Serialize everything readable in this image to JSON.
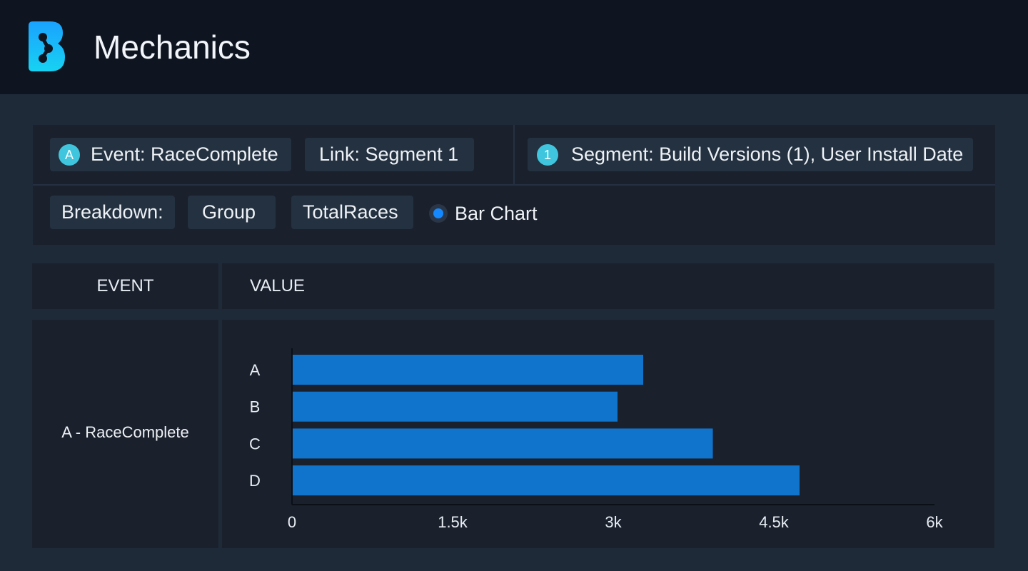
{
  "header": {
    "title": "Mechanics",
    "logo_icon": "brand-logo-icon"
  },
  "query": {
    "event_chip": {
      "badge": "A",
      "label": "Event: RaceComplete"
    },
    "link_chip": {
      "label": "Link: Segment 1"
    },
    "segment_chip": {
      "badge": "1",
      "label": "Segment: Build Versions (1), User Install Date"
    },
    "breakdown_label": "Breakdown:",
    "breakdown_items": [
      "Group",
      "TotalRaces"
    ],
    "chart_option": {
      "label": "Bar Chart",
      "selected": true
    }
  },
  "table": {
    "columns": [
      "EVENT",
      "VALUE"
    ],
    "rows": [
      {
        "event": "A - RaceComplete"
      }
    ]
  },
  "colors": {
    "accent": "#1388ff",
    "badge": "#3fc6de",
    "bar": "#1074cc"
  },
  "chart_data": {
    "type": "bar",
    "orientation": "horizontal",
    "categories": [
      "A",
      "B",
      "C",
      "D"
    ],
    "values": [
      3280,
      3040,
      3930,
      4740
    ],
    "xlim": [
      0,
      6000
    ],
    "xticks": [
      0,
      1500,
      3000,
      4500,
      6000
    ],
    "xtick_labels": [
      "0",
      "1.5k",
      "3k",
      "4.5k",
      "6k"
    ],
    "grid": false
  }
}
